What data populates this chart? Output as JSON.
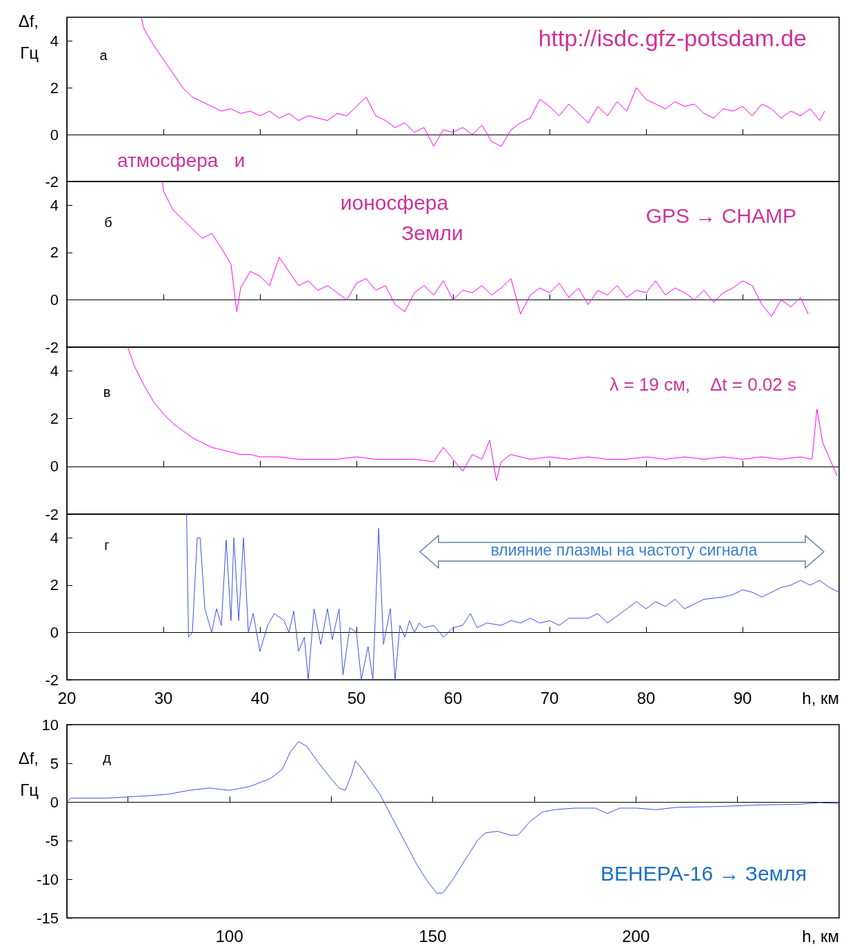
{
  "chart_data": [
    {
      "type": "line",
      "ylabel": "Δf, Гц",
      "xlim": [
        20,
        100
      ],
      "xticks": [
        20,
        30,
        40,
        50,
        60,
        70,
        80,
        90
      ],
      "ylim": [
        -2,
        5
      ],
      "yticks": [
        -2,
        0,
        2,
        4
      ],
      "tick_labels": "y",
      "annotations": [
        "а",
        "http://isdc.gfz-potsdam.de",
        "атмосфера   и"
      ],
      "x": [
        27.7,
        28,
        29,
        30,
        31,
        32,
        33,
        34,
        35,
        36,
        37,
        38,
        39,
        40,
        41,
        42,
        43,
        44,
        45,
        46,
        47,
        48,
        49,
        50,
        51,
        52,
        53,
        54,
        55,
        56,
        57,
        58,
        59,
        60,
        61,
        62,
        63,
        64,
        65,
        66,
        67,
        68,
        69,
        70,
        71,
        72,
        73,
        74,
        75,
        76,
        77,
        78,
        79,
        80,
        81,
        82,
        83,
        84,
        85,
        86,
        87,
        88,
        89,
        90,
        91,
        92,
        93,
        94,
        95,
        96,
        97,
        98,
        98.5
      ],
      "series": [
        {
          "color": "#ff00ff",
          "values": [
            5,
            4.5,
            3.8,
            3.2,
            2.6,
            2.0,
            1.6,
            1.4,
            1.2,
            1.0,
            1.1,
            0.9,
            1.0,
            0.8,
            1.0,
            0.7,
            0.9,
            0.6,
            0.8,
            0.7,
            0.6,
            0.9,
            0.8,
            1.2,
            1.6,
            0.8,
            0.6,
            0.3,
            0.5,
            0.1,
            0.3,
            -0.5,
            0.2,
            0.1,
            0.3,
            0.0,
            0.4,
            -0.3,
            -0.5,
            0.2,
            0.5,
            0.7,
            1.5,
            1.2,
            0.8,
            1.3,
            0.9,
            0.5,
            1.2,
            0.8,
            1.4,
            1.0,
            2.0,
            1.5,
            1.3,
            1.1,
            1.4,
            1.2,
            1.3,
            0.9,
            0.7,
            1.1,
            1.0,
            1.2,
            0.8,
            1.3,
            1.1,
            0.7,
            1.0,
            0.8,
            1.1,
            0.6,
            1.0
          ]
        }
      ]
    },
    {
      "type": "line",
      "xlim": [
        20,
        100
      ],
      "xticks": [
        20,
        30,
        40,
        50,
        60,
        70,
        80,
        90
      ],
      "ylim": [
        -2,
        5
      ],
      "yticks": [
        -2,
        0,
        2,
        4
      ],
      "tick_labels": "y",
      "annotations": [
        "б",
        "ионосфера",
        "Земли",
        "GPS → CHAMP"
      ],
      "x": [
        29.9,
        30,
        31,
        32,
        33,
        34,
        35,
        36,
        37,
        37.6,
        38,
        39,
        40,
        41,
        42,
        43,
        44,
        45,
        46,
        47,
        48,
        49,
        50,
        51,
        52,
        53,
        54,
        55,
        56,
        57,
        58,
        59,
        60,
        61,
        62,
        63,
        64,
        65,
        66,
        67,
        68,
        69,
        70,
        71,
        72,
        73,
        74,
        75,
        76,
        77,
        78,
        79,
        80,
        81,
        82,
        83,
        84,
        85,
        86,
        87,
        88,
        89,
        90,
        91,
        92,
        93,
        94,
        95,
        96,
        96.8
      ],
      "series": [
        {
          "color": "#ff00ff",
          "values": [
            5,
            4.6,
            3.8,
            3.4,
            3.0,
            2.6,
            2.8,
            2.2,
            1.5,
            -0.5,
            0.5,
            1.2,
            1.0,
            0.6,
            1.8,
            1.2,
            0.6,
            0.8,
            0.4,
            0.6,
            0.3,
            0.0,
            0.7,
            0.9,
            0.4,
            0.6,
            -0.2,
            -0.5,
            0.3,
            0.6,
            0.2,
            0.8,
            0.0,
            0.4,
            0.3,
            0.6,
            0.2,
            0.5,
            0.9,
            -0.6,
            0.2,
            0.5,
            0.3,
            0.7,
            0.1,
            0.5,
            -0.2,
            0.4,
            0.2,
            0.6,
            0.1,
            0.4,
            0.3,
            0.8,
            0.2,
            0.5,
            0.3,
            0.0,
            0.4,
            -0.1,
            0.3,
            0.5,
            0.8,
            0.6,
            -0.2,
            -0.7,
            0.0,
            -0.3,
            0.1,
            -0.6
          ]
        }
      ]
    },
    {
      "type": "line",
      "xlim": [
        20,
        100
      ],
      "xticks": [
        20,
        30,
        40,
        50,
        60,
        70,
        80,
        90
      ],
      "ylim": [
        -2,
        5
      ],
      "yticks": [
        -2,
        0,
        2,
        4
      ],
      "tick_labels": "y",
      "annotations": [
        "в",
        "λ = 19 см,    Δt = 0.02 s"
      ],
      "x": [
        26.3,
        27,
        28,
        29,
        30,
        31,
        32,
        33,
        34,
        35,
        36,
        37,
        38,
        39,
        40,
        42,
        44,
        46,
        48,
        50,
        52,
        54,
        56,
        58,
        59,
        60,
        61,
        62,
        63,
        63.8,
        64.5,
        65,
        66,
        68,
        70,
        72,
        74,
        76,
        78,
        80,
        82,
        84,
        86,
        88,
        90,
        92,
        94,
        96,
        97.2,
        97.7,
        98.3,
        99.8
      ],
      "series": [
        {
          "color": "#ff00ff",
          "values": [
            5,
            4.2,
            3.4,
            2.7,
            2.2,
            1.8,
            1.5,
            1.2,
            1.0,
            0.8,
            0.7,
            0.6,
            0.5,
            0.5,
            0.4,
            0.4,
            0.3,
            0.3,
            0.3,
            0.4,
            0.3,
            0.3,
            0.3,
            0.2,
            0.8,
            0.3,
            -0.2,
            0.5,
            0.3,
            1.1,
            -0.6,
            0.2,
            0.5,
            0.3,
            0.4,
            0.3,
            0.4,
            0.3,
            0.3,
            0.4,
            0.3,
            0.4,
            0.3,
            0.4,
            0.3,
            0.4,
            0.3,
            0.4,
            0.3,
            2.4,
            1.0,
            -0.4
          ]
        }
      ]
    },
    {
      "type": "line",
      "xlabel": "h, км",
      "xlim": [
        20,
        100
      ],
      "xticks": [
        20,
        30,
        40,
        50,
        60,
        70,
        80,
        90
      ],
      "ylim": [
        -2,
        5
      ],
      "yticks": [
        -2,
        0,
        2,
        4
      ],
      "annotations": [
        "г",
        "влияние плазмы на частоту сигнала"
      ],
      "x": [
        32.4,
        32.6,
        33,
        33.5,
        33.8,
        34.3,
        35,
        35.5,
        36,
        36.5,
        37,
        37.3,
        37.8,
        38.3,
        38.8,
        39.3,
        40,
        40.8,
        41.5,
        42.5,
        43,
        43.5,
        44,
        44.6,
        45,
        45.6,
        46.3,
        47,
        47.5,
        48.2,
        48.6,
        49.3,
        50,
        50.5,
        51.2,
        51.7,
        52.3,
        52.8,
        53.5,
        54,
        54.5,
        55,
        55.5,
        56,
        56.5,
        57,
        58,
        59,
        60,
        61,
        61.8,
        62.5,
        63.5,
        65,
        66,
        67,
        68,
        69,
        70,
        71,
        72,
        74,
        75,
        76,
        78,
        79,
        80,
        81,
        82,
        83,
        84,
        86,
        88,
        89,
        90,
        91,
        92,
        93,
        94,
        95,
        96,
        97,
        98,
        99,
        100
      ],
      "series": [
        {
          "color": "#3a4ff0",
          "values": [
            5,
            -0.2,
            0,
            4.0,
            4.0,
            1.0,
            0.0,
            1.0,
            0.3,
            3.9,
            0.5,
            4.0,
            0.5,
            4.0,
            0.0,
            0.8,
            -0.8,
            0.3,
            0.8,
            0.5,
            0.0,
            0.9,
            -0.8,
            -0.2,
            -2.0,
            1.0,
            -0.5,
            1.0,
            -0.3,
            1.0,
            -1.8,
            0.2,
            0.0,
            -2.0,
            -0.6,
            -2.0,
            4.4,
            -0.5,
            1.0,
            -2.0,
            0.3,
            -0.2,
            0.5,
            0.0,
            0.4,
            0.2,
            0.3,
            -0.2,
            0.2,
            0.3,
            0.8,
            0.2,
            0.4,
            0.3,
            0.5,
            0.4,
            0.6,
            0.4,
            0.5,
            0.3,
            0.6,
            0.6,
            0.8,
            0.4,
            1.0,
            1.3,
            1.0,
            1.3,
            1.1,
            1.4,
            1.0,
            1.4,
            1.5,
            1.6,
            1.8,
            1.7,
            1.5,
            1.7,
            1.9,
            2.0,
            2.2,
            2.0,
            2.2,
            1.9,
            1.7
          ]
        }
      ]
    },
    {
      "type": "line",
      "xlabel": "h, км",
      "ylabel": "Δf, Гц",
      "xlim": [
        60,
        250
      ],
      "xticks": [
        {
          "value": 75,
          "label": null
        },
        100,
        {
          "value": 125,
          "label": null
        },
        150,
        {
          "value": 175,
          "label": null
        },
        200,
        {
          "value": 225,
          "label": null
        }
      ],
      "ylim": [
        -15,
        10
      ],
      "yticks": [
        -15,
        -10,
        -5,
        0,
        5,
        10
      ],
      "annotations": [
        "д",
        "ВЕНЕРА-16 → Земля"
      ],
      "x": [
        60,
        61,
        70,
        80,
        85,
        90,
        95,
        100,
        105,
        110,
        113,
        115,
        117,
        119,
        122,
        125,
        127,
        128.5,
        130,
        131,
        133,
        137,
        140,
        143,
        146,
        149,
        151,
        152.5,
        155,
        158,
        161,
        163,
        166,
        169,
        171,
        174,
        177,
        180,
        185,
        190,
        193,
        196,
        200,
        205,
        210,
        220,
        230,
        240,
        245,
        250
      ],
      "series": [
        {
          "color": "#3a4ff0",
          "values": [
            0.0,
            0.5,
            0.5,
            0.8,
            1.0,
            1.5,
            1.8,
            1.5,
            2.0,
            3.0,
            4.2,
            6.5,
            7.8,
            7.2,
            5.0,
            3.0,
            1.8,
            1.5,
            3.5,
            5.3,
            4.0,
            1.0,
            -2.0,
            -5.0,
            -8.0,
            -10.5,
            -11.8,
            -11.8,
            -10.0,
            -7.5,
            -5.0,
            -4.0,
            -3.8,
            -4.3,
            -4.3,
            -2.5,
            -1.3,
            -1.0,
            -0.8,
            -0.8,
            -1.5,
            -0.8,
            -0.8,
            -1.0,
            -0.7,
            -0.6,
            -0.4,
            -0.3,
            -0.1,
            -0.2
          ]
        }
      ]
    }
  ]
}
